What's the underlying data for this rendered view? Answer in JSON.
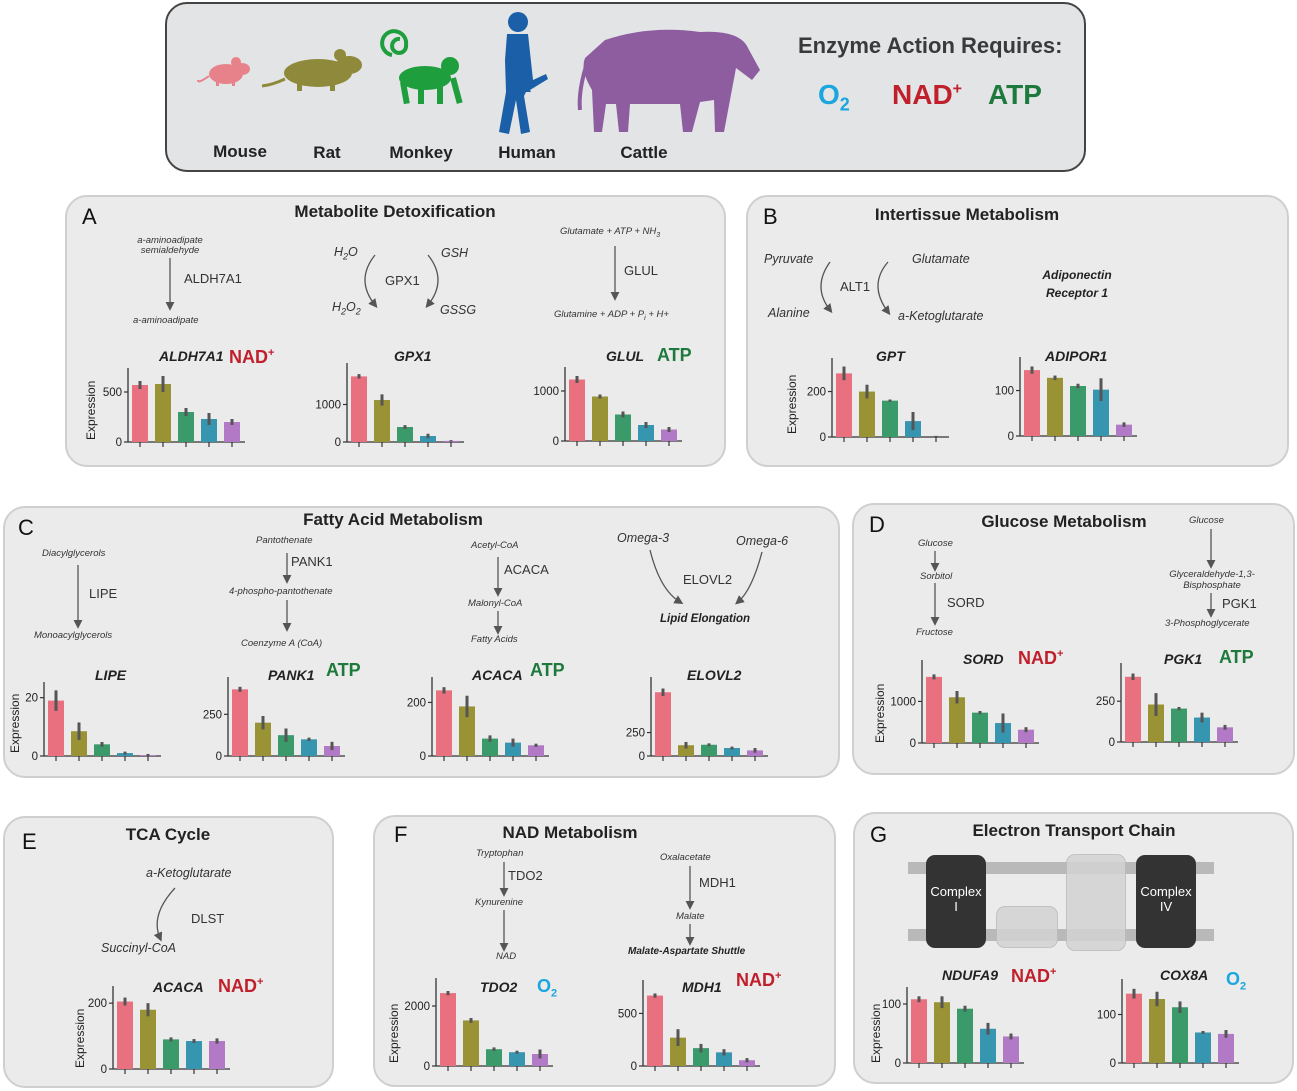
{
  "header": {
    "species": [
      "Mouse",
      "Rat",
      "Monkey",
      "Human",
      "Cattle"
    ],
    "requires_title": "Enzyme Action Requires:",
    "cofactors": {
      "o2_main": "O",
      "o2_sub": "2",
      "nad_main": "NAD",
      "nad_sup": "+",
      "atp": "ATP"
    },
    "colors": {
      "mouse": "#e07a7a",
      "rat": "#8b8b3a",
      "monkey": "#1f9e3e",
      "human": "#1a5fa8",
      "cattle": "#8e5da0"
    }
  },
  "species_colors": [
    "#e8707f",
    "#9a9336",
    "#3a9a6a",
    "#3696b0",
    "#b27ac6"
  ],
  "y_axis_label": "Expression",
  "panels": {
    "A": {
      "letter": "A",
      "title": "Metabolite Detoxification",
      "p1": {
        "top": "a-aminoadipate semialdehyde",
        "enzyme": "ALDH7A1",
        "bottom": "a-aminoadipate"
      },
      "p2": {
        "h2o": "H",
        "h2o_sub": "2",
        "h2o_end": "O",
        "h2o2": "H",
        "h2o2_sub1": "2",
        "h2o2_mid": "O",
        "h2o2_sub2": "2",
        "enzyme": "GPX1",
        "gsh": "GSH",
        "gssg": "GSSG"
      },
      "p3": {
        "top": "Glutamate + ATP + NH",
        "top_sub": "3",
        "enzyme": "GLUL",
        "bottom": "Glutamine + ADP + P",
        "bottom_sub": "i",
        "bottom_end": " + H+"
      }
    },
    "B": {
      "letter": "B",
      "title": "Intertissue Metabolism",
      "pyruvate": "Pyruvate",
      "alanine": "Alanine",
      "enzyme": "ALT1",
      "glutamate": "Glutamate",
      "akg": "a-Ketoglutarate",
      "receptor_line1": "Adiponectin",
      "receptor_line2": "Receptor 1"
    },
    "C": {
      "letter": "C",
      "title": "Fatty Acid Metabolism",
      "p1": {
        "top": "Diacylglycerols",
        "enzyme": "LIPE",
        "bottom": "Monoacylglycerols"
      },
      "p2": {
        "top": "Pantothenate",
        "enzyme": "PANK1",
        "mid": "4-phospho-pantothenate",
        "bottom": "Coenzyme A (CoA)"
      },
      "p3": {
        "top": "Acetyl-CoA",
        "enzyme": "ACACA",
        "mid": "Malonyl-CoA",
        "bottom": "Fatty Acids"
      },
      "p4": {
        "left": "Omega-3",
        "right": "Omega-6",
        "enzyme": "ELOVL2",
        "bottom": "Lipid Elongation"
      }
    },
    "D": {
      "letter": "D",
      "title": "Glucose Metabolism",
      "p1": {
        "top": "Glucose",
        "mid": "Sorbitol",
        "enzyme": "SORD",
        "bottom": "Fructose"
      },
      "p2": {
        "top": "Glucose",
        "mid_line1": "Glyceraldehyde-1,3-",
        "mid_line2": "Bisphosphate",
        "enzyme": "PGK1",
        "bottom": "3-Phosphoglycerate"
      }
    },
    "E": {
      "letter": "E",
      "title": "TCA Cycle",
      "top": "a-Ketoglutarate",
      "enzyme": "DLST",
      "bottom": "Succinyl-CoA"
    },
    "F": {
      "letter": "F",
      "title": "NAD Metabolism",
      "p1": {
        "top": "Tryptophan",
        "enzyme": "TDO2",
        "mid": "Kynurenine",
        "bottom": "NAD"
      },
      "p2": {
        "top": "Oxalacetate",
        "enzyme": "MDH1",
        "mid": "Malate",
        "bottom": "Malate-Aspartate Shuttle"
      }
    },
    "G": {
      "letter": "G",
      "title": "Electron Transport Chain",
      "complex1": "Complex I",
      "complex4": "Complex IV",
      "complex1_l1": "Complex",
      "complex1_l2": "I",
      "complex4_l1": "Complex",
      "complex4_l2": "IV"
    }
  },
  "chart_data": [
    {
      "type": "bar",
      "gene": "ALDH7A1",
      "cofactor": "NAD+",
      "categories": [
        "Mouse",
        "Rat",
        "Monkey",
        "Human",
        "Cattle"
      ],
      "values": [
        570,
        580,
        300,
        230,
        200
      ],
      "errors": [
        40,
        80,
        40,
        60,
        30
      ],
      "yticks": [
        0,
        500
      ],
      "ylim": [
        0,
        700
      ]
    },
    {
      "type": "bar",
      "gene": "GPX1",
      "cofactor": "",
      "categories": [
        "Mouse",
        "Rat",
        "Monkey",
        "Human",
        "Cattle"
      ],
      "values": [
        1750,
        1120,
        400,
        160,
        30
      ],
      "errors": [
        60,
        150,
        50,
        60,
        20
      ],
      "yticks": [
        0,
        1000
      ],
      "ylim": [
        0,
        2000
      ]
    },
    {
      "type": "bar",
      "gene": "GLUL",
      "cofactor": "ATP",
      "categories": [
        "Mouse",
        "Rat",
        "Monkey",
        "Human",
        "Cattle"
      ],
      "values": [
        1230,
        890,
        530,
        320,
        230
      ],
      "errors": [
        70,
        40,
        60,
        60,
        50
      ],
      "yticks": [
        0,
        1000
      ],
      "ylim": [
        0,
        1400
      ]
    },
    {
      "type": "bar",
      "gene": "GPT",
      "cofactor": "",
      "categories": [
        "Mouse",
        "Rat",
        "Monkey",
        "Human",
        "Cattle"
      ],
      "values": [
        280,
        200,
        160,
        70,
        0
      ],
      "errors": [
        30,
        30,
        5,
        40,
        5
      ],
      "yticks": [
        0,
        200
      ],
      "ylim": [
        0,
        330
      ]
    },
    {
      "type": "bar",
      "gene": "ADIPOR1",
      "cofactor": "",
      "categories": [
        "Mouse",
        "Rat",
        "Monkey",
        "Human",
        "Cattle"
      ],
      "values": [
        145,
        128,
        110,
        102,
        25
      ],
      "errors": [
        8,
        5,
        5,
        25,
        5
      ],
      "yticks": [
        0,
        100
      ],
      "ylim": [
        0,
        165
      ]
    },
    {
      "type": "bar",
      "gene": "LIPE",
      "cofactor": "",
      "categories": [
        "Mouse",
        "Rat",
        "Monkey",
        "Human",
        "Cattle"
      ],
      "values": [
        19,
        8.5,
        4,
        1,
        0.3
      ],
      "errors": [
        3.5,
        3,
        0.8,
        0.5,
        0.4
      ],
      "yticks": [
        0,
        20
      ],
      "ylim": [
        0,
        24
      ]
    },
    {
      "type": "bar",
      "gene": "PANK1",
      "cofactor": "ATP",
      "categories": [
        "Mouse",
        "Rat",
        "Monkey",
        "Human",
        "Cattle"
      ],
      "values": [
        400,
        200,
        125,
        100,
        60
      ],
      "errors": [
        15,
        40,
        40,
        10,
        25
      ],
      "yticks": [
        0,
        250
      ],
      "ylim": [
        0,
        450
      ]
    },
    {
      "type": "bar",
      "gene": "ACACA",
      "cofactor": "ATP",
      "categories": [
        "Mouse",
        "Rat",
        "Monkey",
        "Human",
        "Cattle"
      ],
      "values": [
        245,
        185,
        65,
        50,
        40
      ],
      "errors": [
        12,
        40,
        12,
        15,
        6
      ],
      "yticks": [
        0,
        200
      ],
      "ylim": [
        0,
        280
      ]
    },
    {
      "type": "bar",
      "gene": "ELOVL2",
      "cofactor": "",
      "categories": [
        "Mouse",
        "Rat",
        "Monkey",
        "Human",
        "Cattle"
      ],
      "values": [
        680,
        115,
        120,
        85,
        60
      ],
      "errors": [
        40,
        35,
        15,
        15,
        25
      ],
      "yticks": [
        0,
        250
      ],
      "ylim": [
        0,
        800
      ]
    },
    {
      "type": "bar",
      "gene": "SORD",
      "cofactor": "NAD+",
      "categories": [
        "Mouse",
        "Rat",
        "Monkey",
        "Human",
        "Cattle"
      ],
      "values": [
        1590,
        1100,
        730,
        480,
        320
      ],
      "errors": [
        60,
        150,
        40,
        230,
        60
      ],
      "yticks": [
        0,
        1000
      ],
      "ylim": [
        0,
        1900
      ]
    },
    {
      "type": "bar",
      "gene": "PGK1",
      "cofactor": "ATP",
      "categories": [
        "Mouse",
        "Rat",
        "Monkey",
        "Human",
        "Cattle"
      ],
      "values": [
        400,
        230,
        205,
        150,
        90
      ],
      "errors": [
        20,
        70,
        10,
        30,
        15
      ],
      "yticks": [
        0,
        250
      ],
      "ylim": [
        0,
        460
      ]
    },
    {
      "type": "bar",
      "gene": "ACACA",
      "cofactor": "NAD+",
      "categories": [
        "Mouse",
        "Rat",
        "Monkey",
        "Human",
        "Cattle"
      ],
      "values": [
        205,
        180,
        90,
        85,
        85
      ],
      "errors": [
        12,
        20,
        6,
        6,
        8
      ],
      "yticks": [
        0,
        200
      ],
      "ylim": [
        0,
        240
      ]
    },
    {
      "type": "bar",
      "gene": "TDO2",
      "cofactor": "O2",
      "categories": [
        "Mouse",
        "Rat",
        "Monkey",
        "Human",
        "Cattle"
      ],
      "values": [
        2430,
        1520,
        560,
        460,
        400
      ],
      "errors": [
        70,
        80,
        60,
        50,
        150
      ],
      "yticks": [
        0,
        2000
      ],
      "ylim": [
        0,
        2800
      ]
    },
    {
      "type": "bar",
      "gene": "MDH1",
      "cofactor": "NAD+",
      "categories": [
        "Mouse",
        "Rat",
        "Monkey",
        "Human",
        "Cattle"
      ],
      "values": [
        670,
        270,
        170,
        130,
        55
      ],
      "errors": [
        20,
        80,
        40,
        30,
        20
      ],
      "yticks": [
        0,
        500
      ],
      "ylim": [
        0,
        780
      ]
    },
    {
      "type": "bar",
      "gene": "NDUFA9",
      "cofactor": "NAD+",
      "categories": [
        "Mouse",
        "Rat",
        "Monkey",
        "Human",
        "Cattle"
      ],
      "values": [
        108,
        103,
        92,
        58,
        45
      ],
      "errors": [
        5,
        10,
        5,
        10,
        5
      ],
      "yticks": [
        0,
        100
      ],
      "ylim": [
        0,
        122
      ]
    },
    {
      "type": "bar",
      "gene": "COX8A",
      "cofactor": "O2",
      "categories": [
        "Mouse",
        "Rat",
        "Monkey",
        "Human",
        "Cattle"
      ],
      "values": [
        143,
        132,
        115,
        63,
        60
      ],
      "errors": [
        10,
        15,
        12,
        3,
        8
      ],
      "yticks": [
        0,
        100
      ],
      "ylim": [
        0,
        165
      ]
    }
  ]
}
